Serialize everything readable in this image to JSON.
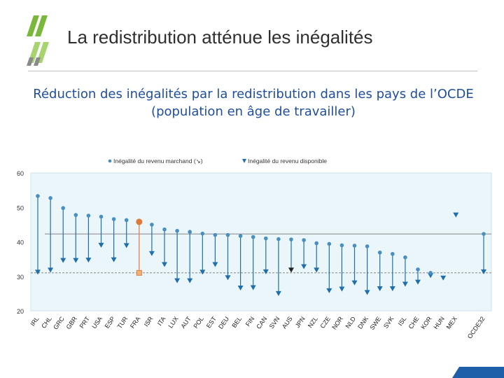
{
  "slide": {
    "title": "La redistribution atténue les inégalités",
    "subtitle_line1": "Réduction des inégalités par la redistribution dans les pays de l’OCDE",
    "subtitle_line2": "(population en âge de travailler)"
  },
  "colors": {
    "plot_bg": "#eaf6f9",
    "marker": "#4a8fc1",
    "arrow": "#1f6fad",
    "france_market": "#e07a3b",
    "france_disposable": "#f0b27a",
    "reference_line": "#777777",
    "title_text": "#2f2f2f",
    "subtitle_text": "#1f4e9b",
    "logo_green_dark": "#7ab83b",
    "logo_green_light": "#a8d46f",
    "logo_grey": "#8a8a8a",
    "corner_accent": "#1f5ea8"
  },
  "chart_data": {
    "type": "dot-arrow",
    "legend": {
      "market": "Inégalité du revenu marchand (↘)",
      "disposable": "Inégalité du revenu disponible"
    },
    "ylim": [
      20,
      60
    ],
    "yticks": [
      20,
      30,
      40,
      50,
      60
    ],
    "reference_lines": {
      "market_oecd": 42.3,
      "disposable_oecd": 31.0
    },
    "categories": [
      "IRL",
      "CHL",
      "GRC",
      "GBR",
      "PRT",
      "USA",
      "ESP",
      "TUR",
      "FRA",
      "ISR",
      "ITA",
      "LUX",
      "AUT",
      "POL",
      "EST",
      "DEU",
      "BEL",
      "FIN",
      "CAN",
      "SVN",
      "AUS",
      "JPN",
      "NZL",
      "CZE",
      "NOR",
      "NLD",
      "DNK",
      "SWE",
      "SVK",
      "ISL",
      "CHE",
      "KOR",
      "HUN",
      "MEX",
      "OCDE32"
    ],
    "series": [
      {
        "name": "Inégalité du revenu marchand (↘)",
        "values": [
          53.3,
          52.7,
          49.8,
          47.8,
          47.6,
          47.3,
          46.6,
          46.3,
          45.8,
          45.0,
          43.6,
          43.2,
          42.9,
          42.4,
          42.0,
          42.0,
          41.7,
          41.4,
          41.0,
          40.8,
          40.7,
          40.5,
          39.6,
          39.4,
          39.0,
          38.9,
          38.7,
          36.9,
          36.5,
          35.5,
          32.0,
          31.0,
          null,
          null,
          42.3
        ]
      },
      {
        "name": "Inégalité du revenu disponible",
        "values": [
          30.9,
          31.5,
          34.3,
          34.3,
          34.4,
          38.7,
          34.5,
          38.6,
          31.0,
          36.3,
          33.1,
          28.4,
          28.4,
          30.9,
          33.1,
          29.3,
          26.3,
          26.4,
          31.0,
          24.7,
          31.5,
          32.5,
          31.5,
          25.5,
          26.0,
          27.8,
          25.0,
          26.1,
          26.1,
          27.4,
          28.0,
          29.9,
          29.2,
          47.5,
          31.0
        ]
      }
    ]
  }
}
